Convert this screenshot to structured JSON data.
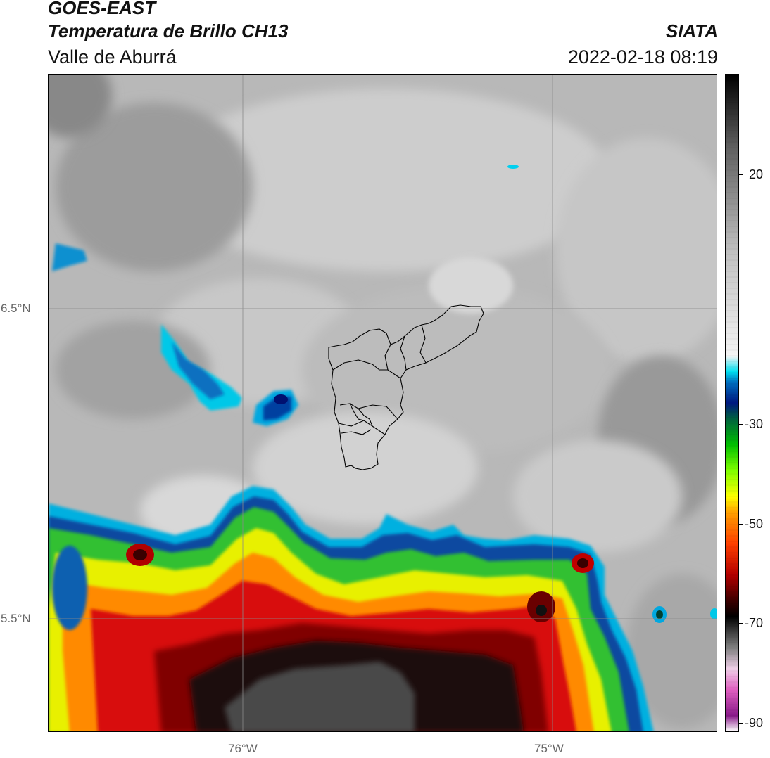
{
  "header": {
    "satellite": "GOES-EAST",
    "product": "Temperatura de Brillo CH13",
    "region": "Valle de Aburrá",
    "agency": "SIATA",
    "datetime": "2022-02-18 08:19"
  },
  "map": {
    "lat_ticks": [
      {
        "label": "6.5°N",
        "value": 6.5
      },
      {
        "label": "5.5°N",
        "value": 5.5
      }
    ],
    "lon_ticks": [
      {
        "label": "76°W",
        "value": -76.0
      },
      {
        "label": "75°W",
        "value": -75.0
      }
    ],
    "gridlines": true,
    "grid_color": "#8a8a8a"
  },
  "colorbar": {
    "ticks": [
      {
        "label": "20",
        "value": 20
      },
      {
        "label": "-30",
        "value": -30
      },
      {
        "label": "-50",
        "value": -50
      },
      {
        "label": "-70",
        "value": -70
      },
      {
        "label": "-90",
        "value": -90
      }
    ],
    "range": [
      -92,
      34
    ],
    "palette": [
      "#ffffff",
      "#8a1a8a",
      "#e060c0",
      "#f0d0e8",
      "#808080",
      "#000000",
      "#3a0000",
      "#b40000",
      "#ff4000",
      "#ffa000",
      "#ffff00",
      "#80ff00",
      "#00c000",
      "#006040",
      "#001880",
      "#0070c0",
      "#00e0f0",
      "#f4f4f4",
      "#c0c0c0",
      "#606060",
      "#000000"
    ]
  }
}
